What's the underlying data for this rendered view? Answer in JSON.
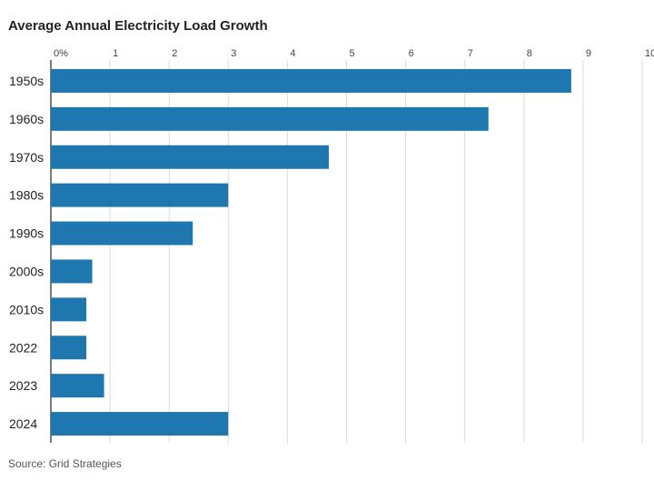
{
  "chart_data": {
    "type": "bar",
    "orientation": "horizontal",
    "title": "Average Annual Electricity Load Growth",
    "categories": [
      "1950s",
      "1960s",
      "1970s",
      "1980s",
      "1990s",
      "2000s",
      "2010s",
      "2022",
      "2023",
      "2024"
    ],
    "values": [
      8.8,
      7.4,
      4.7,
      3.0,
      2.4,
      0.7,
      0.6,
      0.6,
      0.9,
      3.0
    ],
    "xlim": [
      0,
      10
    ],
    "x_ticks": [
      "0%",
      "1",
      "2",
      "3",
      "4",
      "5",
      "6",
      "7",
      "8",
      "9",
      "10"
    ],
    "x_tick_position": "top",
    "grid": true,
    "bar_color": "#1f77b0",
    "source": "Source: Grid Strategies"
  }
}
